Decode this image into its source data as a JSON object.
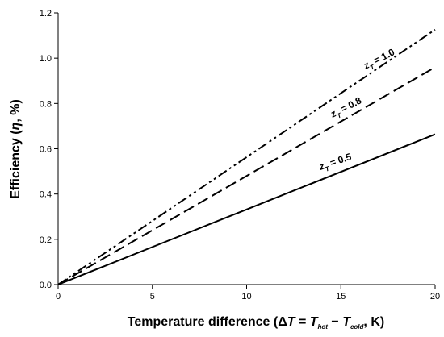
{
  "chart_data": {
    "type": "line",
    "title": "",
    "xlabel": {
      "prefix": "Temperature difference (",
      "delta": "Δ",
      "T": "T",
      "eq": " = ",
      "T_hot": "T",
      "hot_sub": "hot",
      "minus": " − ",
      "T_cold": "T",
      "cold_sub": "cold",
      "suffix": ", K)"
    },
    "ylabel": {
      "prefix": "Efficiency (",
      "eta": "η",
      "suffix": ", %)"
    },
    "xlim": [
      0,
      20
    ],
    "ylim": [
      0,
      1.2
    ],
    "xticks": [
      0,
      5,
      10,
      15,
      20
    ],
    "yticks": [
      0.0,
      0.2,
      0.4,
      0.6,
      0.8,
      1.0,
      1.2
    ],
    "grid": false,
    "legend": "inline labels",
    "series": [
      {
        "name": "zT = 0.5",
        "label": {
          "z": "z",
          "sub": "T",
          "rest": " = 0.5"
        },
        "dash": "solid",
        "x": [
          0,
          5,
          10,
          15,
          20
        ],
        "y": [
          0,
          0.166,
          0.332,
          0.498,
          0.664
        ]
      },
      {
        "name": "zT = 0.8",
        "label": {
          "z": "z",
          "sub": "T",
          "rest": " = 0.8"
        },
        "dash": "dashed",
        "x": [
          0,
          5,
          10,
          15,
          20
        ],
        "y": [
          0,
          0.24,
          0.48,
          0.72,
          0.96
        ]
      },
      {
        "name": "zT = 1.0",
        "label": {
          "z": "z",
          "sub": "T",
          "rest": " = 1.0"
        },
        "dash": "dash-dot-dot",
        "x": [
          0,
          5,
          10,
          15,
          20
        ],
        "y": [
          0,
          0.281,
          0.563,
          0.845,
          1.126
        ]
      }
    ]
  }
}
